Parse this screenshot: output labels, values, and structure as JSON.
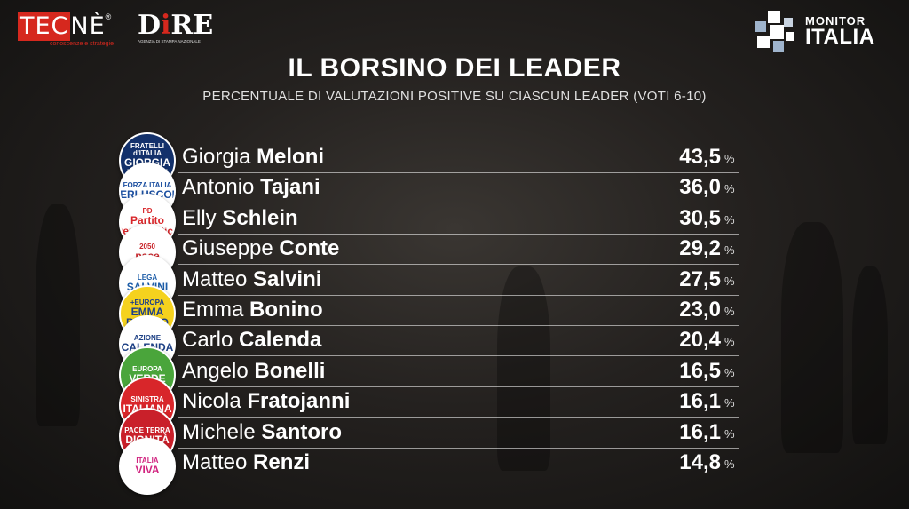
{
  "brand": {
    "tecne_left": "TEC",
    "tecne_right": "NÈ",
    "tecne_reg": "®",
    "tecne_tagline": "conoscenze e strategie",
    "dire_prefix": "D",
    "dire_i": "i",
    "dire_suffix": "RE",
    "dire_tagline": "AGENZIA DI STAMPA NAZIONALE",
    "monitor_line1": "MONITOR",
    "monitor_line2": "ITALIA"
  },
  "chart_data": {
    "type": "table",
    "title": "IL BORSINO DEI LEADER",
    "subtitle": "PERCENTUALE DI VALUTAZIONI POSITIVE SU CIASCUN LEADER (VOTI 6-10)",
    "unit": "%",
    "rows": [
      {
        "first": "Giorgia",
        "last": "Meloni",
        "value": "43,5",
        "logo": {
          "l1": "FRATELLI d'ITALIA",
          "l2": "GIORGIA MELONI",
          "bg": "#13316b",
          "fg": "#ffffff"
        }
      },
      {
        "first": "Antonio",
        "last": "Tajani",
        "value": "36,0",
        "logo": {
          "l1": "FORZA ITALIA",
          "l2": "BERLUSCONI",
          "bg": "#ffffff",
          "fg": "#1c4fa0"
        }
      },
      {
        "first": "Elly",
        "last": "Schlein",
        "value": "30,5",
        "logo": {
          "l1": "PD",
          "l2": "Partito Democratico",
          "bg": "#ffffff",
          "fg": "#d8262a"
        }
      },
      {
        "first": "Giuseppe",
        "last": "Conte",
        "value": "29,2",
        "logo": {
          "l1": "2050",
          "l2": "pace",
          "bg": "#ffffff",
          "fg": "#c9252b"
        }
      },
      {
        "first": "Matteo",
        "last": "Salvini",
        "value": "27,5",
        "logo": {
          "l1": "LEGA",
          "l2": "SALVINI",
          "bg": "#ffffff",
          "fg": "#1d5da8"
        }
      },
      {
        "first": "Emma",
        "last": "Bonino",
        "value": "23,0",
        "logo": {
          "l1": "+EUROPA",
          "l2": "EMMA BONINO",
          "bg": "#f5d21e",
          "fg": "#1d3f8a"
        }
      },
      {
        "first": "Carlo",
        "last": "Calenda",
        "value": "20,4",
        "logo": {
          "l1": "AZIONE",
          "l2": "CALENDA",
          "bg": "#ffffff",
          "fg": "#1c3f84"
        }
      },
      {
        "first": "Angelo",
        "last": "Bonelli",
        "value": "16,5",
        "logo": {
          "l1": "EUROPA",
          "l2": "VERDE",
          "bg": "#4aa53b",
          "fg": "#ffffff"
        }
      },
      {
        "first": "Nicola",
        "last": "Fratojanni",
        "value": "16,1",
        "logo": {
          "l1": "SINISTRA",
          "l2": "ITALIANA",
          "bg": "#d8262a",
          "fg": "#ffffff"
        }
      },
      {
        "first": "Michele",
        "last": "Santoro",
        "value": "16,1",
        "logo": {
          "l1": "PACE TERRA",
          "l2": "DIGNITÀ",
          "bg": "#c9202a",
          "fg": "#ffffff"
        }
      },
      {
        "first": "Matteo",
        "last": "Renzi",
        "value": "14,8",
        "logo": {
          "l1": "ITALIA",
          "l2": "VIVA",
          "bg": "#ffffff",
          "fg": "#d1237f"
        }
      }
    ]
  }
}
